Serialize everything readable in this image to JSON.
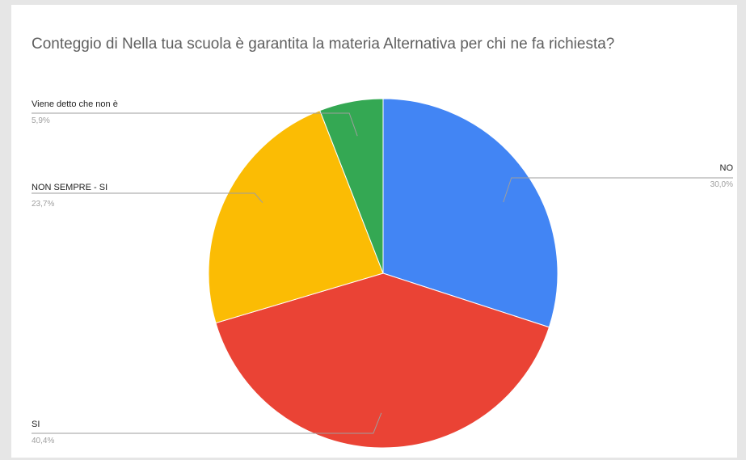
{
  "chart_data": {
    "type": "pie",
    "title": "Conteggio di Nella tua scuola è garantita la materia Alternativa per chi ne fa richiesta?",
    "slices": [
      {
        "label": "NO",
        "value": 30.0,
        "value_label": "30,0%",
        "color": "#4285f4"
      },
      {
        "label": "SI",
        "value": 40.4,
        "value_label": "40,4%",
        "color": "#ea4335"
      },
      {
        "label": "NON SEMPRE - SI",
        "value": 23.7,
        "value_label": "23,7%",
        "color": "#fbbc04"
      },
      {
        "label": "Viene detto che non è",
        "value": 5.9,
        "value_label": "5,9%",
        "color": "#34a853"
      }
    ],
    "start_angle": "top",
    "direction": "clockwise",
    "legend": "labeled-lines"
  }
}
